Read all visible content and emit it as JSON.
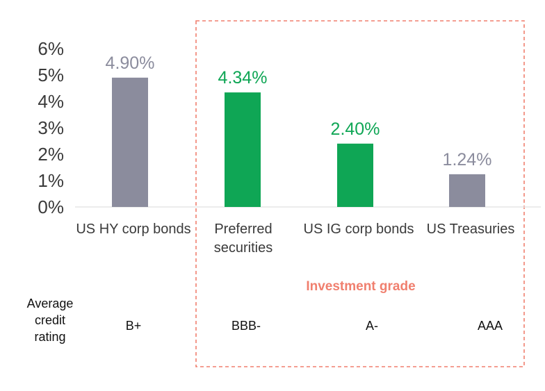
{
  "chart_data": {
    "type": "bar",
    "categories": [
      "US HY corp bonds",
      "Preferred securities",
      "US IG corp bonds",
      "US Treasuries"
    ],
    "category_lines": [
      [
        "US HY corp bonds"
      ],
      [
        "Preferred",
        "securities"
      ],
      [
        "US IG corp bonds"
      ],
      [
        "US Treasuries"
      ]
    ],
    "values": [
      4.9,
      4.34,
      2.4,
      1.24
    ],
    "value_labels": [
      "4.90%",
      "4.34%",
      "2.40%",
      "1.24%"
    ],
    "bar_colors": [
      "#8b8c9d",
      "#0fa655",
      "#0fa655",
      "#8b8c9d"
    ],
    "label_colors": [
      "#8b8c9d",
      "#0fa655",
      "#0fa655",
      "#8b8c9d"
    ],
    "ylim": [
      0,
      6
    ],
    "yticks": [
      "0%",
      "1%",
      "2%",
      "3%",
      "4%",
      "5%",
      "6%"
    ],
    "highlight_group": {
      "label": "Investment grade",
      "categories": [
        "Preferred securities",
        "US IG corp bonds",
        "US Treasuries"
      ],
      "border_color": "#f07f6e"
    },
    "rating_header": [
      "Average",
      "credit",
      "rating"
    ],
    "ratings": [
      "B+",
      "BBB-",
      "A-",
      "AAA"
    ]
  }
}
